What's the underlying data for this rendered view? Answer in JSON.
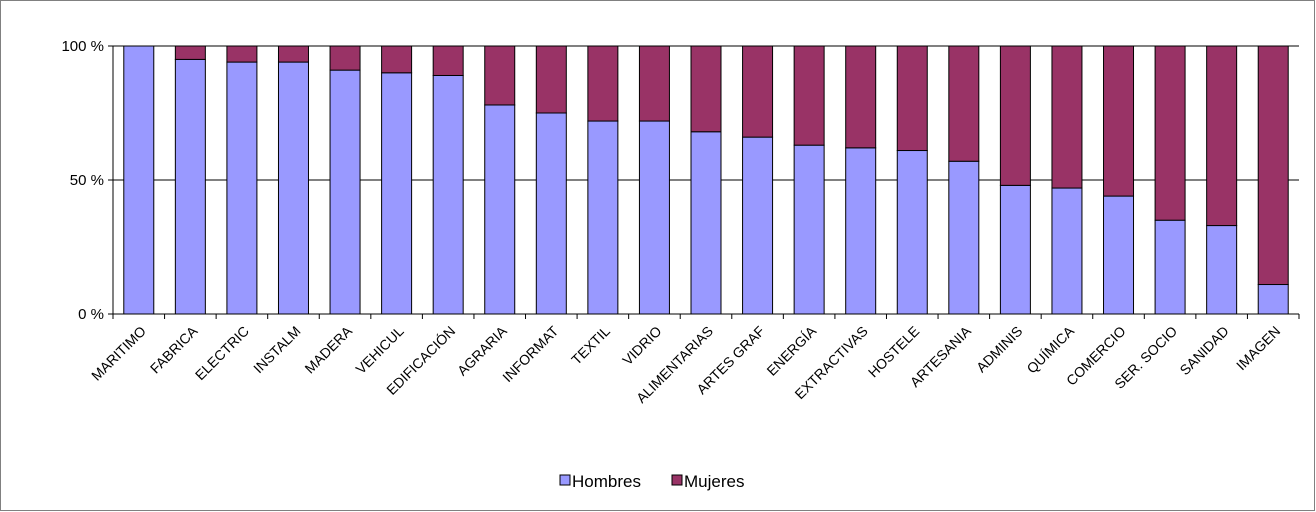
{
  "chart_data": {
    "type": "bar",
    "stacked": "percent",
    "categories": [
      "MARITIMO",
      "FABRICA",
      "ELECTRIC",
      "INSTALM",
      "MADERA",
      "VEHICUL",
      "EDIFICACIÓN",
      "AGRARIA",
      "INFORMAT",
      "TEXTIL",
      "VIDRIO",
      "ALIMENTARIAS",
      "ARTES GRAF",
      "ENERGÍA",
      "EXTRACTIVAS",
      "HOSTELE",
      "ARTESANIA",
      "ADMINIS",
      "QUÍMICA",
      "COMERCIO",
      "SER. SOCIO",
      "SANIDAD",
      "IMAGEN"
    ],
    "series": [
      {
        "name": "Hombres",
        "color": "#9999ff",
        "values": [
          100,
          95,
          94,
          94,
          91,
          90,
          89,
          78,
          75,
          72,
          72,
          68,
          66,
          63,
          62,
          61,
          57,
          48,
          47,
          44,
          35,
          33,
          11
        ]
      },
      {
        "name": "Mujeres",
        "color": "#993366",
        "values": [
          0,
          5,
          6,
          6,
          9,
          10,
          11,
          22,
          25,
          28,
          28,
          32,
          34,
          37,
          38,
          39,
          43,
          52,
          53,
          56,
          65,
          67,
          89
        ]
      }
    ],
    "yticks": [
      "0 %",
      "50 %",
      "100 %"
    ],
    "ylim": [
      0,
      100
    ],
    "grid": true,
    "legend_position": "bottom"
  }
}
